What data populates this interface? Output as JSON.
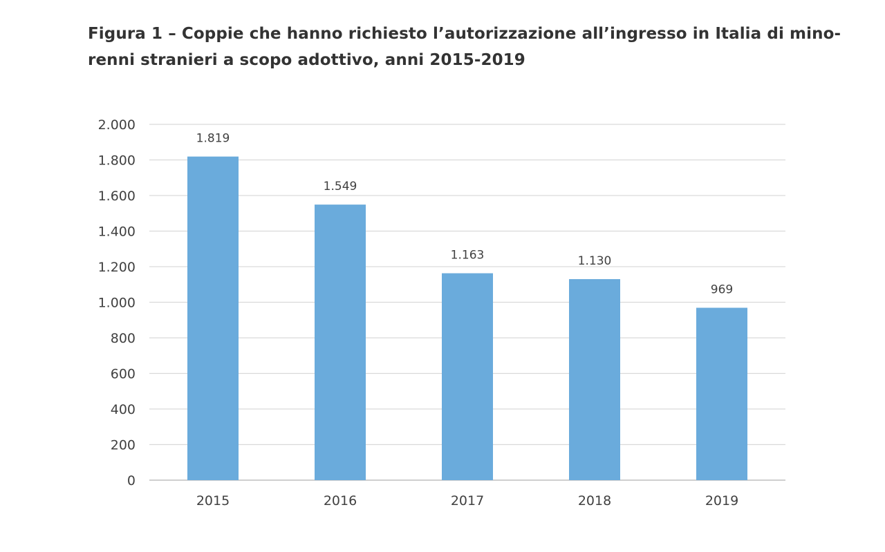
{
  "figure": {
    "title_line1": "Figura 1 – Coppie che hanno richiesto l’autorizzazione all’ingresso in Italia di mino-",
    "title_line2": "renni stranieri a scopo adottivo, anni 2015-2019"
  },
  "colors": {
    "bar": "#6aabdc",
    "grid": "#d9d9d9",
    "axis": "#bfbfbf",
    "text": "#404040"
  },
  "chart_data": {
    "type": "bar",
    "title": "Figura 1 – Coppie che hanno richiesto l’autorizzazione all’ingresso in Italia di minorenni stranieri a scopo adottivo, anni 2015-2019",
    "categories": [
      "2015",
      "2016",
      "2017",
      "2018",
      "2019"
    ],
    "values": [
      1819,
      1549,
      1163,
      1130,
      969
    ],
    "value_labels": [
      "1.819",
      "1.549",
      "1.163",
      "1.130",
      "969"
    ],
    "yticks": [
      0,
      200,
      400,
      600,
      800,
      1000,
      1200,
      1400,
      1600,
      1800,
      2000
    ],
    "ytick_labels": [
      "0",
      "200",
      "400",
      "600",
      "800",
      "1.000",
      "1.200",
      "1.400",
      "1.600",
      "1.800",
      "2.000"
    ],
    "ylim": [
      0,
      2000
    ],
    "xlabel": "",
    "ylabel": "",
    "grid": true,
    "legend": false
  }
}
